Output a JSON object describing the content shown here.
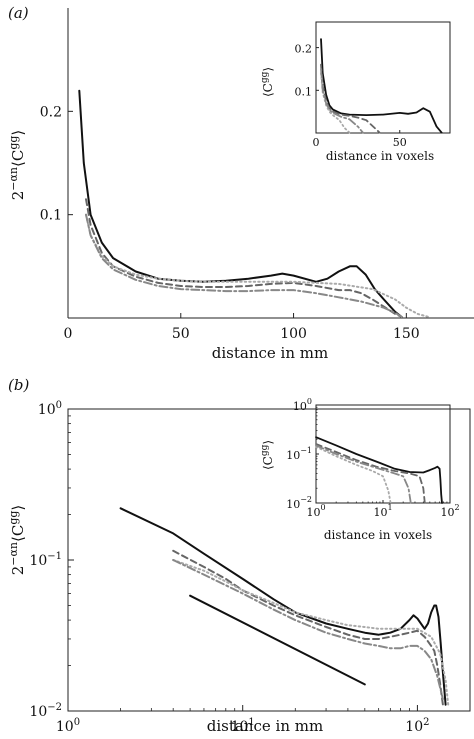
{
  "chart_data": [
    {
      "panel_label": "(a)",
      "type": "line",
      "xlabel": "distance in mm",
      "ylabel": "2^{-αn}⟨C^{gg}⟩",
      "xlim": [
        0,
        180
      ],
      "ylim": [
        0,
        0.3
      ],
      "xticks": [
        0,
        50,
        100,
        150
      ],
      "xtick_labels": [
        "0",
        "50",
        "100",
        "150"
      ],
      "yticks": [
        0.1,
        0.2
      ],
      "ytick_labels": [
        "0.1",
        "0.2"
      ],
      "grid": false,
      "series": [
        {
          "style": "solid",
          "color": "#111111",
          "x": [
            5,
            7,
            10,
            15,
            20,
            30,
            40,
            50,
            60,
            70,
            80,
            90,
            95,
            100,
            110,
            115,
            120,
            125,
            128,
            132,
            136,
            140,
            145,
            148
          ],
          "y": [
            0.22,
            0.15,
            0.1,
            0.073,
            0.058,
            0.045,
            0.038,
            0.036,
            0.035,
            0.036,
            0.038,
            0.041,
            0.043,
            0.041,
            0.035,
            0.038,
            0.045,
            0.05,
            0.05,
            0.042,
            0.028,
            0.018,
            0.006,
            0.001
          ]
        },
        {
          "style": "dashed",
          "color": "#666666",
          "x": [
            8,
            10,
            15,
            20,
            30,
            40,
            50,
            60,
            70,
            80,
            90,
            100,
            110,
            120,
            125,
            130,
            135,
            140,
            145,
            148
          ],
          "y": [
            0.115,
            0.09,
            0.063,
            0.05,
            0.04,
            0.034,
            0.031,
            0.03,
            0.03,
            0.031,
            0.033,
            0.034,
            0.031,
            0.027,
            0.027,
            0.024,
            0.018,
            0.011,
            0.004,
            0.001
          ]
        },
        {
          "style": "dotted",
          "color": "#aaaaaa",
          "x": [
            8,
            10,
            15,
            20,
            30,
            40,
            50,
            60,
            80,
            100,
            120,
            135,
            145,
            150,
            155,
            160
          ],
          "y": [
            0.1,
            0.08,
            0.06,
            0.05,
            0.042,
            0.038,
            0.036,
            0.035,
            0.035,
            0.035,
            0.033,
            0.028,
            0.018,
            0.01,
            0.004,
            0.001
          ]
        },
        {
          "style": "dashdot",
          "color": "#888888",
          "x": [
            8,
            10,
            15,
            20,
            30,
            40,
            50,
            60,
            70,
            80,
            90,
            100,
            110,
            120,
            130,
            140,
            145,
            148
          ],
          "y": [
            0.1,
            0.08,
            0.058,
            0.047,
            0.037,
            0.031,
            0.028,
            0.027,
            0.026,
            0.026,
            0.027,
            0.027,
            0.024,
            0.02,
            0.016,
            0.01,
            0.005,
            0.001
          ]
        }
      ],
      "inset": {
        "xlabel": "distance in voxels",
        "ylabel": "⟨C^{gg}⟩",
        "xlim": [
          0,
          80
        ],
        "ylim": [
          0,
          0.26
        ],
        "xticks": [
          0,
          50
        ],
        "xtick_labels": [
          "0",
          "50"
        ],
        "yticks": [
          0.1,
          0.2
        ],
        "ytick_labels": [
          "0.1",
          "0.2"
        ],
        "series": [
          {
            "style": "solid",
            "color": "#111111",
            "x": [
              3,
              4,
              6,
              8,
              10,
              15,
              20,
              30,
              40,
              50,
              55,
              60,
              64,
              68,
              72,
              75
            ],
            "y": [
              0.22,
              0.14,
              0.09,
              0.065,
              0.055,
              0.046,
              0.043,
              0.042,
              0.043,
              0.047,
              0.045,
              0.048,
              0.058,
              0.05,
              0.015,
              0.001
            ]
          },
          {
            "style": "dashed",
            "color": "#666666",
            "x": [
              3,
              4,
              6,
              8,
              10,
              15,
              20,
              25,
              30,
              35,
              38
            ],
            "y": [
              0.16,
              0.11,
              0.075,
              0.058,
              0.05,
              0.043,
              0.04,
              0.036,
              0.03,
              0.012,
              0.001
            ]
          },
          {
            "style": "dotted",
            "color": "#aaaaaa",
            "x": [
              3,
              4,
              6,
              8,
              10,
              14,
              17,
              20
            ],
            "y": [
              0.14,
              0.095,
              0.065,
              0.05,
              0.042,
              0.03,
              0.012,
              0.001
            ]
          },
          {
            "style": "dashdot",
            "color": "#888888",
            "x": [
              3,
              4,
              6,
              8,
              10,
              15,
              20,
              25,
              28
            ],
            "y": [
              0.15,
              0.1,
              0.07,
              0.055,
              0.047,
              0.038,
              0.032,
              0.015,
              0.001
            ]
          }
        ]
      }
    },
    {
      "panel_label": "(b)",
      "type": "line",
      "scale": "log-log",
      "xlabel": "distance in mm",
      "ylabel": "2^{-αn}⟨C^{gg}⟩",
      "xlim": [
        1,
        200
      ],
      "ylim": [
        0.01,
        1
      ],
      "xticks": [
        1,
        10,
        100
      ],
      "xtick_labels": [
        [
          "10",
          "0"
        ],
        [
          "10",
          "1"
        ],
        [
          "10",
          "2"
        ]
      ],
      "yticks": [
        0.01,
        0.1,
        1
      ],
      "ytick_labels": [
        [
          "10",
          "−2"
        ],
        [
          "10",
          "−1"
        ],
        [
          "10",
          "0"
        ]
      ],
      "grid": false,
      "series": [
        {
          "style": "solid",
          "color": "#111111",
          "x": [
            2,
            4,
            6,
            10,
            15,
            20,
            30,
            40,
            50,
            60,
            70,
            80,
            90,
            95,
            100,
            110,
            115,
            120,
            125,
            128,
            132,
            136,
            140,
            145
          ],
          "y": [
            0.22,
            0.15,
            0.11,
            0.075,
            0.055,
            0.045,
            0.038,
            0.035,
            0.033,
            0.032,
            0.033,
            0.035,
            0.04,
            0.043,
            0.041,
            0.035,
            0.038,
            0.045,
            0.05,
            0.05,
            0.042,
            0.028,
            0.018,
            0.011
          ]
        },
        {
          "style": "dashed",
          "color": "#666666",
          "x": [
            4,
            6,
            8,
            10,
            15,
            20,
            30,
            40,
            50,
            60,
            70,
            80,
            90,
            100,
            110,
            120,
            125,
            130,
            135,
            140
          ],
          "y": [
            0.115,
            0.09,
            0.075,
            0.063,
            0.05,
            0.043,
            0.036,
            0.032,
            0.03,
            0.03,
            0.031,
            0.032,
            0.033,
            0.034,
            0.031,
            0.027,
            0.025,
            0.02,
            0.015,
            0.011
          ]
        },
        {
          "style": "dotted",
          "color": "#aaaaaa",
          "x": [
            4,
            6,
            8,
            10,
            15,
            20,
            30,
            40,
            50,
            60,
            80,
            100,
            120,
            135,
            145,
            150
          ],
          "y": [
            0.1,
            0.085,
            0.072,
            0.063,
            0.052,
            0.045,
            0.04,
            0.037,
            0.036,
            0.035,
            0.035,
            0.035,
            0.031,
            0.024,
            0.016,
            0.011
          ]
        },
        {
          "style": "dashdot",
          "color": "#888888",
          "x": [
            4,
            6,
            8,
            10,
            15,
            20,
            30,
            40,
            50,
            60,
            70,
            80,
            90,
            100,
            110,
            120,
            130,
            140
          ],
          "y": [
            0.1,
            0.08,
            0.068,
            0.06,
            0.047,
            0.04,
            0.033,
            0.03,
            0.028,
            0.027,
            0.026,
            0.026,
            0.027,
            0.027,
            0.025,
            0.022,
            0.017,
            0.012
          ]
        },
        {
          "style": "solid",
          "color": "#111111",
          "x": [
            5,
            50
          ],
          "y": [
            0.058,
            0.015
          ]
        }
      ],
      "inset": {
        "xlabel": "distance in voxels",
        "ylabel": "⟨C^{gg}⟩",
        "scale": "log-log",
        "xlim": [
          1,
          100
        ],
        "ylim": [
          0.01,
          1
        ],
        "xticks": [
          1,
          10,
          100
        ],
        "xtick_labels": [
          [
            "10",
            "0"
          ],
          [
            "10",
            "1"
          ],
          [
            "10",
            "2"
          ]
        ],
        "yticks": [
          0.01,
          0.1,
          1
        ],
        "ytick_labels": [
          [
            "10",
            "−2"
          ],
          [
            "10",
            "−1"
          ],
          [
            "10",
            "0"
          ]
        ],
        "series": [
          {
            "style": "solid",
            "color": "#111111",
            "x": [
              1,
              2,
              4,
              8,
              15,
              25,
              40,
              50,
              60,
              65,
              70,
              72,
              74,
              76
            ],
            "y": [
              0.22,
              0.15,
              0.1,
              0.07,
              0.05,
              0.043,
              0.042,
              0.047,
              0.052,
              0.055,
              0.05,
              0.03,
              0.015,
              0.01
            ]
          },
          {
            "style": "dashed",
            "color": "#666666",
            "x": [
              1,
              2,
              4,
              8,
              15,
              25,
              35,
              40,
              42
            ],
            "y": [
              0.16,
              0.11,
              0.075,
              0.055,
              0.045,
              0.04,
              0.035,
              0.02,
              0.01
            ]
          },
          {
            "style": "dotted",
            "color": "#aaaaaa",
            "x": [
              1,
              2,
              4,
              7,
              10,
              12,
              13
            ],
            "y": [
              0.14,
              0.09,
              0.06,
              0.045,
              0.035,
              0.018,
              0.01
            ]
          },
          {
            "style": "dashdot",
            "color": "#888888",
            "x": [
              1,
              2,
              4,
              8,
              15,
              20,
              24,
              26
            ],
            "y": [
              0.15,
              0.1,
              0.07,
              0.052,
              0.04,
              0.035,
              0.02,
              0.01
            ]
          }
        ]
      }
    }
  ]
}
